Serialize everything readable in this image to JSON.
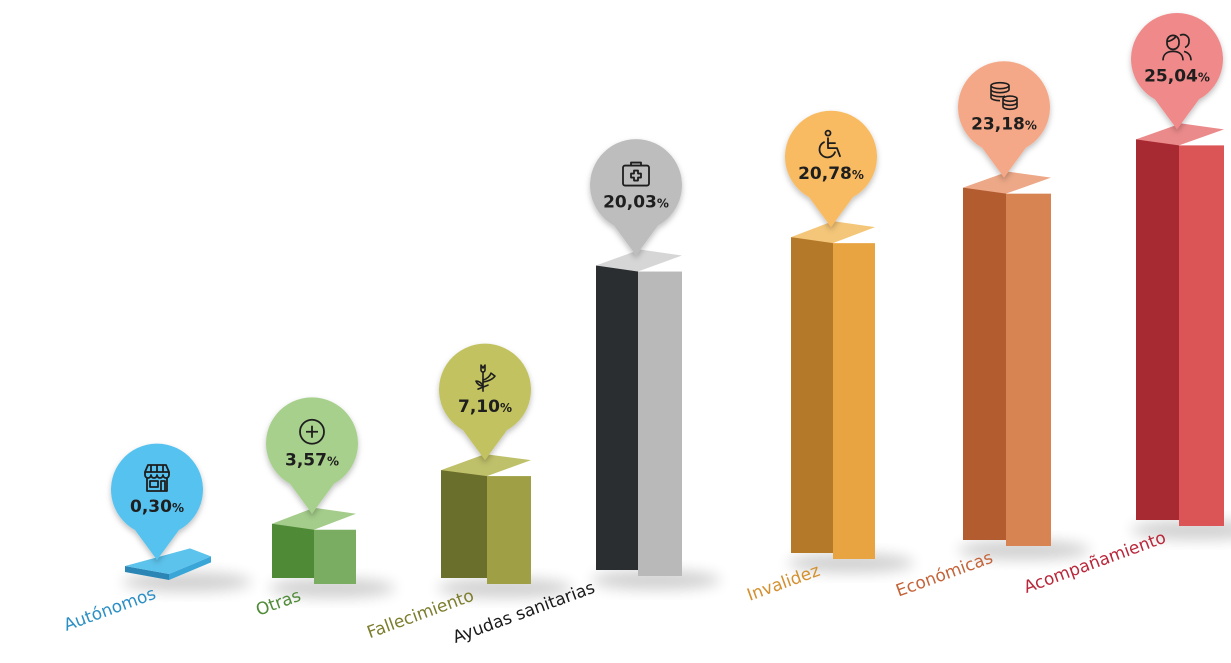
{
  "chart_data": {
    "type": "bar",
    "categories": [
      "Autónomos",
      "Otras",
      "Fallecimiento",
      "Ayudas sanitarias",
      "Invalidez",
      "Económicas",
      "Acompañamiento"
    ],
    "values": [
      0.3,
      3.57,
      7.1,
      20.03,
      20.78,
      23.18,
      25.04
    ],
    "labels": [
      "0,30",
      "3,57",
      "7,10",
      "20,03",
      "20,78",
      "23,18",
      "25,04"
    ],
    "unit": "%",
    "icons": [
      "shop-icon",
      "plus-circle-icon",
      "flower-icon",
      "medical-kit-icon",
      "wheelchair-icon",
      "coins-icon",
      "people-icon"
    ],
    "colors": [
      {
        "front": "#3aa6d8",
        "side": "#2b86b6",
        "top": "#5cc3ec",
        "pin": "#55c2ef",
        "text": "#2b8fc4"
      },
      {
        "front": "#7aad62",
        "side": "#4f8a37",
        "top": "#a4cc8a",
        "pin": "#a7d08c",
        "text": "#4f8a37"
      },
      {
        "front": "#9fa046",
        "side": "#6b6f2c",
        "top": "#bfc06a",
        "pin": "#c2c260",
        "text": "#7d7d2e"
      },
      {
        "front": "#b9b9b9",
        "side": "#2b2e30",
        "top": "#d6d6d6",
        "pin": "#bdbdbd",
        "text": "#1a1a1a"
      },
      {
        "front": "#e8a441",
        "side": "#b5792a",
        "top": "#f4c679",
        "pin": "#f8bb62",
        "text": "#d3902e"
      },
      {
        "front": "#d88352",
        "side": "#b35c30",
        "top": "#eca887",
        "pin": "#f5a887",
        "text": "#c4643a"
      },
      {
        "front": "#db5557",
        "side": "#a72a33",
        "top": "#eb8a8b",
        "pin": "#f08a8a",
        "text": "#b9273a"
      }
    ],
    "grid": false,
    "legend": "none"
  }
}
